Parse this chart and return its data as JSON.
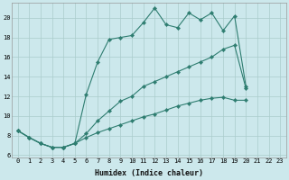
{
  "xlabel": "Humidex (Indice chaleur)",
  "bg_color": "#cce8ec",
  "grid_color": "#aacccc",
  "line_color": "#2e7d70",
  "line1_y": [
    8.5,
    7.8,
    7.2,
    6.8,
    6.8,
    7.2,
    12.2,
    15.5,
    17.8,
    18.0,
    18.2,
    19.5,
    21.0,
    19.3,
    19.0,
    20.5,
    19.8,
    20.5,
    18.7,
    20.2,
    13.0
  ],
  "line2_y": [
    8.5,
    7.8,
    7.2,
    6.8,
    6.8,
    7.2,
    8.2,
    9.5,
    10.5,
    11.5,
    12.0,
    13.0,
    13.5,
    14.0,
    14.5,
    15.0,
    15.5,
    16.0,
    16.8,
    17.2,
    12.8
  ],
  "line3_y": [
    8.5,
    7.8,
    7.2,
    6.8,
    6.8,
    7.2,
    7.8,
    8.3,
    8.7,
    9.1,
    9.5,
    9.9,
    10.2,
    10.6,
    11.0,
    11.3,
    11.6,
    11.8,
    11.9,
    11.6,
    11.6
  ],
  "n_points": 21,
  "xlim_min": -0.5,
  "xlim_max": 23.5,
  "ylim_min": 5.8,
  "ylim_max": 21.5,
  "yticks": [
    6,
    8,
    10,
    12,
    14,
    16,
    18,
    20
  ],
  "xticks": [
    0,
    1,
    2,
    3,
    4,
    5,
    6,
    7,
    8,
    9,
    10,
    11,
    12,
    13,
    14,
    15,
    16,
    17,
    18,
    19,
    20,
    21,
    22,
    23
  ],
  "tick_fontsize": 5.0,
  "xlabel_fontsize": 6.0,
  "marker_size": 2.2,
  "linewidth": 0.8
}
